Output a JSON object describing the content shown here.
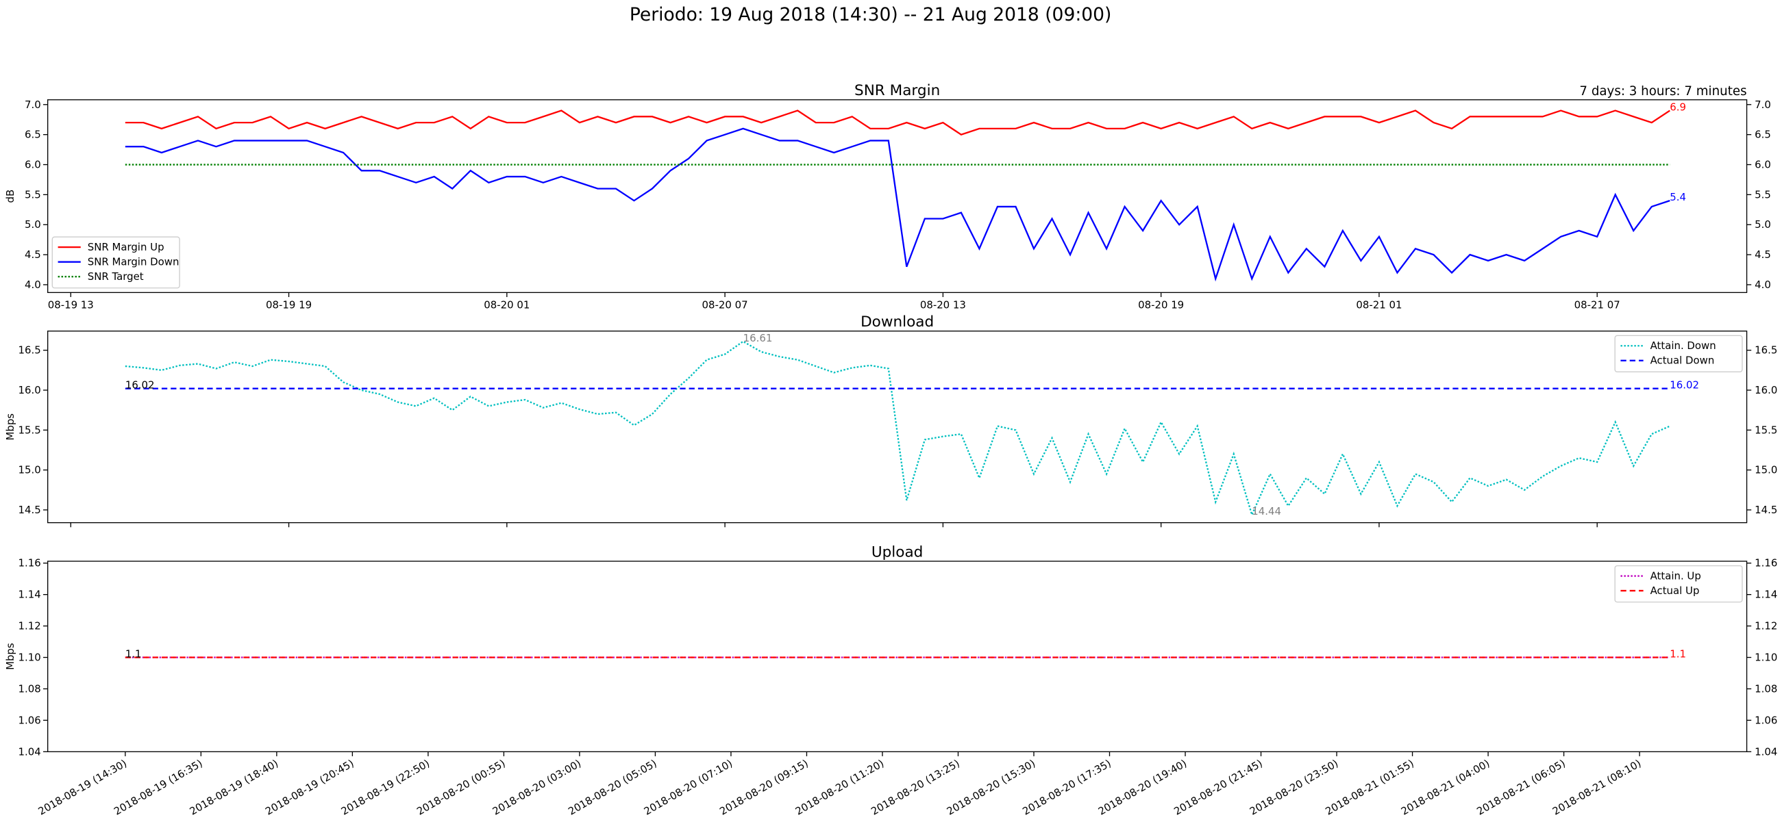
{
  "suptitle": "Periodo: 19 Aug 2018 (14:30) -- 21 Aug 2018 (09:00)",
  "chart_data": [
    {
      "type": "line",
      "title": "SNR Margin",
      "corner_text": "7 days: 3 hours: 7 minutes",
      "ylabel": "dB",
      "legend": "lower left",
      "xlim": [
        "2018-08-19 12:22",
        "2018-08-21 11:07"
      ],
      "x": [
        "2018-08-19 14:30",
        "2018-08-19 15:00",
        "2018-08-19 15:30",
        "2018-08-19 16:00",
        "2018-08-19 16:30",
        "2018-08-19 17:00",
        "2018-08-19 17:30",
        "2018-08-19 18:00",
        "2018-08-19 18:30",
        "2018-08-19 19:00",
        "2018-08-19 19:30",
        "2018-08-19 20:00",
        "2018-08-19 20:30",
        "2018-08-19 21:00",
        "2018-08-19 21:30",
        "2018-08-19 22:00",
        "2018-08-19 22:30",
        "2018-08-19 23:00",
        "2018-08-19 23:30",
        "2018-08-20 00:00",
        "2018-08-20 00:30",
        "2018-08-20 01:00",
        "2018-08-20 01:30",
        "2018-08-20 02:00",
        "2018-08-20 02:30",
        "2018-08-20 03:00",
        "2018-08-20 03:30",
        "2018-08-20 04:00",
        "2018-08-20 04:30",
        "2018-08-20 05:00",
        "2018-08-20 05:30",
        "2018-08-20 06:00",
        "2018-08-20 06:30",
        "2018-08-20 07:00",
        "2018-08-20 07:30",
        "2018-08-20 08:00",
        "2018-08-20 08:30",
        "2018-08-20 09:00",
        "2018-08-20 09:30",
        "2018-08-20 10:00",
        "2018-08-20 10:30",
        "2018-08-20 11:00",
        "2018-08-20 11:30",
        "2018-08-20 12:00",
        "2018-08-20 12:30",
        "2018-08-20 13:00",
        "2018-08-20 13:30",
        "2018-08-20 14:00",
        "2018-08-20 14:30",
        "2018-08-20 15:00",
        "2018-08-20 15:30",
        "2018-08-20 16:00",
        "2018-08-20 16:30",
        "2018-08-20 17:00",
        "2018-08-20 17:30",
        "2018-08-20 18:00",
        "2018-08-20 18:30",
        "2018-08-20 19:00",
        "2018-08-20 19:30",
        "2018-08-20 20:00",
        "2018-08-20 20:30",
        "2018-08-20 21:00",
        "2018-08-20 21:30",
        "2018-08-20 22:00",
        "2018-08-20 22:30",
        "2018-08-20 23:00",
        "2018-08-20 23:30",
        "2018-08-21 00:00",
        "2018-08-21 00:30",
        "2018-08-21 01:00",
        "2018-08-21 01:30",
        "2018-08-21 02:00",
        "2018-08-21 02:30",
        "2018-08-21 03:00",
        "2018-08-21 03:30",
        "2018-08-21 04:00",
        "2018-08-21 04:30",
        "2018-08-21 05:00",
        "2018-08-21 05:30",
        "2018-08-21 06:00",
        "2018-08-21 06:30",
        "2018-08-21 07:00",
        "2018-08-21 07:30",
        "2018-08-21 08:00",
        "2018-08-21 08:30",
        "2018-08-21 09:00"
      ],
      "series": [
        {
          "name": "SNR Margin Up",
          "color": "#ff0000",
          "linestyle": "solid",
          "values": [
            6.7,
            6.7,
            6.6,
            6.7,
            6.8,
            6.6,
            6.7,
            6.7,
            6.8,
            6.6,
            6.7,
            6.6,
            6.7,
            6.8,
            6.7,
            6.6,
            6.7,
            6.7,
            6.8,
            6.6,
            6.8,
            6.7,
            6.7,
            6.8,
            6.9,
            6.7,
            6.8,
            6.7,
            6.8,
            6.8,
            6.7,
            6.8,
            6.7,
            6.8,
            6.8,
            6.7,
            6.8,
            6.9,
            6.7,
            6.7,
            6.8,
            6.6,
            6.6,
            6.7,
            6.6,
            6.7,
            6.5,
            6.6,
            6.6,
            6.6,
            6.7,
            6.6,
            6.6,
            6.7,
            6.6,
            6.6,
            6.7,
            6.6,
            6.7,
            6.6,
            6.7,
            6.8,
            6.6,
            6.7,
            6.6,
            6.7,
            6.8,
            6.8,
            6.8,
            6.7,
            6.8,
            6.9,
            6.7,
            6.6,
            6.8,
            6.8,
            6.8,
            6.8,
            6.8,
            6.9,
            6.8,
            6.8,
            6.9,
            6.8,
            6.7,
            6.9
          ]
        },
        {
          "name": "SNR Margin Down",
          "color": "#0000ff",
          "linestyle": "solid",
          "values": [
            6.3,
            6.3,
            6.2,
            6.3,
            6.4,
            6.3,
            6.4,
            6.4,
            6.4,
            6.4,
            6.4,
            6.3,
            6.2,
            5.9,
            5.9,
            5.8,
            5.7,
            5.8,
            5.6,
            5.9,
            5.7,
            5.8,
            5.8,
            5.7,
            5.8,
            5.7,
            5.6,
            5.6,
            5.4,
            5.6,
            5.9,
            6.1,
            6.4,
            6.5,
            6.6,
            6.5,
            6.4,
            6.4,
            6.3,
            6.2,
            6.3,
            6.4,
            6.4,
            4.3,
            5.1,
            5.1,
            5.2,
            4.6,
            5.3,
            5.3,
            4.6,
            5.1,
            4.5,
            5.2,
            4.6,
            5.3,
            4.9,
            5.4,
            5.0,
            5.3,
            4.1,
            5.0,
            4.1,
            4.8,
            4.2,
            4.6,
            4.3,
            4.9,
            4.4,
            4.8,
            4.2,
            4.6,
            4.5,
            4.2,
            4.5,
            4.4,
            4.5,
            4.4,
            4.6,
            4.8,
            4.9,
            4.8,
            5.5,
            4.9,
            5.3,
            5.4
          ]
        },
        {
          "name": "SNR Target",
          "color": "#008000",
          "linestyle": "dotted",
          "x": [
            "2018-08-19 14:30",
            "2018-08-21 09:00"
          ],
          "values": [
            6,
            6
          ]
        }
      ],
      "ylim": [
        3.87,
        7.08
      ],
      "yticks": [
        {
          "value": 4,
          "label": "4.0"
        },
        4.5,
        {
          "value": 5,
          "label": "5.0"
        },
        5.5,
        {
          "value": 6,
          "label": "6.0"
        },
        6.5,
        {
          "value": 7,
          "label": "7.0"
        }
      ],
      "xticks": [
        {
          "value": "2018-08-19 13:00",
          "label": "08-19 13"
        },
        {
          "value": "2018-08-19 19:00",
          "label": "08-19 19"
        },
        {
          "value": "2018-08-20 01:00",
          "label": "08-20 01"
        },
        {
          "value": "2018-08-20 07:00",
          "label": "08-20 07"
        },
        {
          "value": "2018-08-20 13:00",
          "label": "08-20 13"
        },
        {
          "value": "2018-08-20 19:00",
          "label": "08-20 19"
        },
        {
          "value": "2018-08-21 01:00",
          "label": "08-21 01"
        },
        {
          "value": "2018-08-21 07:00",
          "label": "08-21 07"
        }
      ],
      "annotations": [
        {
          "label": "6.9",
          "x": "2018-08-21 09:00",
          "y": 6.9,
          "color": "#ff0000"
        },
        {
          "label": "5.4",
          "x": "2018-08-21 09:00",
          "y": 5.4,
          "color": "#0000ff"
        }
      ]
    },
    {
      "type": "line",
      "title": "Download",
      "ylabel": "Mbps",
      "legend": "upper right",
      "xlim": [
        "2018-08-19 12:22",
        "2018-08-21 11:07"
      ],
      "x": [
        "2018-08-19 14:30",
        "2018-08-19 15:00",
        "2018-08-19 15:30",
        "2018-08-19 16:00",
        "2018-08-19 16:30",
        "2018-08-19 17:00",
        "2018-08-19 17:30",
        "2018-08-19 18:00",
        "2018-08-19 18:30",
        "2018-08-19 19:00",
        "2018-08-19 19:30",
        "2018-08-19 20:00",
        "2018-08-19 20:30",
        "2018-08-19 21:00",
        "2018-08-19 21:30",
        "2018-08-19 22:00",
        "2018-08-19 22:30",
        "2018-08-19 23:00",
        "2018-08-19 23:30",
        "2018-08-20 00:00",
        "2018-08-20 00:30",
        "2018-08-20 01:00",
        "2018-08-20 01:30",
        "2018-08-20 02:00",
        "2018-08-20 02:30",
        "2018-08-20 03:00",
        "2018-08-20 03:30",
        "2018-08-20 04:00",
        "2018-08-20 04:30",
        "2018-08-20 05:00",
        "2018-08-20 05:30",
        "2018-08-20 06:00",
        "2018-08-20 06:30",
        "2018-08-20 07:00",
        "2018-08-20 07:30",
        "2018-08-20 08:00",
        "2018-08-20 08:30",
        "2018-08-20 09:00",
        "2018-08-20 09:30",
        "2018-08-20 10:00",
        "2018-08-20 10:30",
        "2018-08-20 11:00",
        "2018-08-20 11:30",
        "2018-08-20 12:00",
        "2018-08-20 12:30",
        "2018-08-20 13:00",
        "2018-08-20 13:30",
        "2018-08-20 14:00",
        "2018-08-20 14:30",
        "2018-08-20 15:00",
        "2018-08-20 15:30",
        "2018-08-20 16:00",
        "2018-08-20 16:30",
        "2018-08-20 17:00",
        "2018-08-20 17:30",
        "2018-08-20 18:00",
        "2018-08-20 18:30",
        "2018-08-20 19:00",
        "2018-08-20 19:30",
        "2018-08-20 20:00",
        "2018-08-20 20:30",
        "2018-08-20 21:00",
        "2018-08-20 21:30",
        "2018-08-20 22:00",
        "2018-08-20 22:30",
        "2018-08-20 23:00",
        "2018-08-20 23:30",
        "2018-08-21 00:00",
        "2018-08-21 00:30",
        "2018-08-21 01:00",
        "2018-08-21 01:30",
        "2018-08-21 02:00",
        "2018-08-21 02:30",
        "2018-08-21 03:00",
        "2018-08-21 03:30",
        "2018-08-21 04:00",
        "2018-08-21 04:30",
        "2018-08-21 05:00",
        "2018-08-21 05:30",
        "2018-08-21 06:00",
        "2018-08-21 06:30",
        "2018-08-21 07:00",
        "2018-08-21 07:30",
        "2018-08-21 08:00",
        "2018-08-21 08:30",
        "2018-08-21 09:00"
      ],
      "series": [
        {
          "name": "Attain. Down",
          "color": "#00bfbf",
          "linestyle": "dotted",
          "values": [
            16.3,
            16.28,
            16.25,
            16.31,
            16.33,
            16.27,
            16.35,
            16.3,
            16.38,
            16.36,
            16.33,
            16.3,
            16.1,
            16.0,
            15.95,
            15.85,
            15.8,
            15.9,
            15.75,
            15.92,
            15.8,
            15.85,
            15.88,
            15.78,
            15.84,
            15.76,
            15.7,
            15.72,
            15.56,
            15.7,
            15.95,
            16.15,
            16.38,
            16.45,
            16.61,
            16.48,
            16.42,
            16.38,
            16.3,
            16.22,
            16.28,
            16.31,
            16.27,
            14.62,
            15.38,
            15.42,
            15.45,
            14.9,
            15.55,
            15.5,
            14.95,
            15.4,
            14.85,
            15.45,
            14.95,
            15.52,
            15.1,
            15.6,
            15.2,
            15.55,
            14.6,
            15.2,
            14.44,
            14.95,
            14.55,
            14.9,
            14.7,
            15.2,
            14.7,
            15.1,
            14.55,
            14.95,
            14.85,
            14.6,
            14.9,
            14.8,
            14.88,
            14.75,
            14.92,
            15.05,
            15.15,
            15.1,
            15.6,
            15.05,
            15.45,
            15.55
          ]
        },
        {
          "name": "Actual Down",
          "color": "#0000ff",
          "linestyle": "dashed",
          "x": [
            "2018-08-19 14:30",
            "2018-08-21 09:00"
          ],
          "values": [
            16.02,
            16.02
          ]
        }
      ],
      "ylim": [
        14.34,
        16.74
      ],
      "yticks": [
        14.5,
        {
          "value": 15,
          "label": "15.0"
        },
        15.5,
        {
          "value": 16,
          "label": "16.0"
        },
        16.5
      ],
      "xticks": [
        "2018-08-19 13:00",
        "2018-08-19 19:00",
        "2018-08-20 01:00",
        "2018-08-20 07:00",
        "2018-08-20 13:00",
        "2018-08-20 19:00",
        "2018-08-21 01:00",
        "2018-08-21 07:00"
      ],
      "annotations": [
        {
          "label": "16.61",
          "x": "2018-08-20 07:30",
          "y": 16.61,
          "color": "#808080"
        },
        {
          "label": "14.44",
          "x": "2018-08-20 21:30",
          "y": 14.44,
          "color": "#808080"
        },
        {
          "label": "16.02",
          "x": "2018-08-19 14:30",
          "y": 16.02,
          "color": "#000000"
        },
        {
          "label": "16.02",
          "x": "2018-08-21 09:00",
          "y": 16.02,
          "color": "#0000ff"
        }
      ]
    },
    {
      "type": "line",
      "title": "Upload",
      "ylabel": "Mbps",
      "legend": "upper right",
      "xlim": [
        "2018-08-19 12:22",
        "2018-08-21 11:07"
      ],
      "series": [
        {
          "name": "Attain. Up",
          "color": "#bf00bf",
          "linestyle": "dotted",
          "x": [
            "2018-08-19 14:30",
            "2018-08-21 09:00"
          ],
          "values": [
            1.1,
            1.1
          ]
        },
        {
          "name": "Actual Up",
          "color": "#ff0000",
          "linestyle": "dashed",
          "x": [
            "2018-08-19 14:30",
            "2018-08-21 09:00"
          ],
          "values": [
            1.1,
            1.1
          ]
        }
      ],
      "ylim": [
        1.04,
        1.1612
      ],
      "yticks": [
        1.04,
        1.06,
        1.08,
        {
          "value": 1.1,
          "label": "1.10"
        },
        1.12,
        1.14,
        1.16
      ],
      "xticks": [
        {
          "value": "2018-08-19 14:30",
          "label": "2018-08-19 (14:30)"
        },
        {
          "value": "2018-08-19 16:35",
          "label": "2018-08-19 (16:35)"
        },
        {
          "value": "2018-08-19 18:40",
          "label": "2018-08-19 (18:40)"
        },
        {
          "value": "2018-08-19 20:45",
          "label": "2018-08-19 (20:45)"
        },
        {
          "value": "2018-08-19 22:50",
          "label": "2018-08-19 (22:50)"
        },
        {
          "value": "2018-08-20 00:55",
          "label": "2018-08-20 (00:55)"
        },
        {
          "value": "2018-08-20 03:00",
          "label": "2018-08-20 (03:00)"
        },
        {
          "value": "2018-08-20 05:05",
          "label": "2018-08-20 (05:05)"
        },
        {
          "value": "2018-08-20 07:10",
          "label": "2018-08-20 (07:10)"
        },
        {
          "value": "2018-08-20 09:15",
          "label": "2018-08-20 (09:15)"
        },
        {
          "value": "2018-08-20 11:20",
          "label": "2018-08-20 (11:20)"
        },
        {
          "value": "2018-08-20 13:25",
          "label": "2018-08-20 (13:25)"
        },
        {
          "value": "2018-08-20 15:30",
          "label": "2018-08-20 (15:30)"
        },
        {
          "value": "2018-08-20 17:35",
          "label": "2018-08-20 (17:35)"
        },
        {
          "value": "2018-08-20 19:40",
          "label": "2018-08-20 (19:40)"
        },
        {
          "value": "2018-08-20 21:45",
          "label": "2018-08-20 (21:45)"
        },
        {
          "value": "2018-08-20 23:50",
          "label": "2018-08-20 (23:50)"
        },
        {
          "value": "2018-08-21 01:55",
          "label": "2018-08-21 (01:55)"
        },
        {
          "value": "2018-08-21 04:00",
          "label": "2018-08-21 (04:00)"
        },
        {
          "value": "2018-08-21 06:05",
          "label": "2018-08-21 (06:05)"
        },
        {
          "value": "2018-08-21 08:10",
          "label": "2018-08-21 (08:10)"
        }
      ],
      "annotations": [
        {
          "label": "1.1",
          "x": "2018-08-19 14:30",
          "y": 1.1,
          "color": "#000000"
        },
        {
          "label": "1.1",
          "x": "2018-08-21 09:00",
          "y": 1.1,
          "color": "#ff0000"
        }
      ]
    }
  ]
}
